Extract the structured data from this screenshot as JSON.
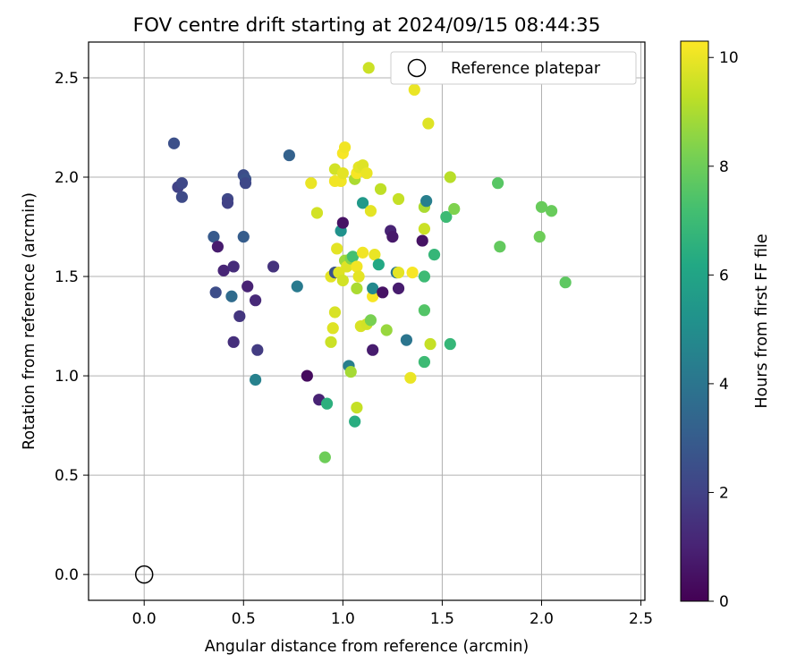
{
  "chart_data": {
    "type": "scatter",
    "title": "FOV centre drift starting at 2024/09/15 08:44:35",
    "xlabel": "Angular distance from reference (arcmin)",
    "ylabel": "Rotation from reference (arcmin)",
    "xlim": [
      -0.28,
      2.52
    ],
    "ylim": [
      -0.13,
      2.68
    ],
    "xticks": [
      0.0,
      0.5,
      1.0,
      1.5,
      2.0,
      2.5
    ],
    "xtick_labels": [
      "0.0",
      "0.5",
      "1.0",
      "1.5",
      "2.0",
      "2.5"
    ],
    "yticks": [
      0.0,
      0.5,
      1.0,
      1.5,
      2.0,
      2.5
    ],
    "ytick_labels": [
      "0.0",
      "0.5",
      "1.0",
      "1.5",
      "2.0",
      "2.5"
    ],
    "grid": true,
    "legend": {
      "position": "top-right",
      "entries": [
        "Reference platepar"
      ]
    },
    "reference_point": {
      "x": 0.0,
      "y": 0.0,
      "label": "Reference platepar"
    },
    "colorbar": {
      "label": "Hours from first FF file",
      "colormap": "viridis",
      "range": [
        0,
        10.3
      ],
      "ticks": [
        0,
        2,
        4,
        6,
        8,
        10
      ],
      "tick_labels": [
        "0",
        "2",
        "4",
        "6",
        "8",
        "10"
      ]
    },
    "points": [
      {
        "x": 0.15,
        "y": 2.17,
        "c": 2.5
      },
      {
        "x": 0.17,
        "y": 1.95,
        "c": 2.0
      },
      {
        "x": 0.19,
        "y": 1.97,
        "c": 2.2
      },
      {
        "x": 0.19,
        "y": 1.9,
        "c": 2.3
      },
      {
        "x": 0.35,
        "y": 1.7,
        "c": 2.9
      },
      {
        "x": 0.36,
        "y": 1.42,
        "c": 2.4
      },
      {
        "x": 0.37,
        "y": 1.65,
        "c": 0.8
      },
      {
        "x": 0.4,
        "y": 1.53,
        "c": 1.1
      },
      {
        "x": 0.42,
        "y": 1.89,
        "c": 2.2
      },
      {
        "x": 0.42,
        "y": 1.87,
        "c": 2.0
      },
      {
        "x": 0.45,
        "y": 1.55,
        "c": 1.3
      },
      {
        "x": 0.44,
        "y": 1.4,
        "c": 3.6
      },
      {
        "x": 0.45,
        "y": 1.17,
        "c": 1.4
      },
      {
        "x": 0.48,
        "y": 1.3,
        "c": 1.6
      },
      {
        "x": 0.5,
        "y": 2.01,
        "c": 2.4
      },
      {
        "x": 0.51,
        "y": 1.99,
        "c": 2.6
      },
      {
        "x": 0.51,
        "y": 1.97,
        "c": 2.2
      },
      {
        "x": 0.5,
        "y": 1.7,
        "c": 3.0
      },
      {
        "x": 0.52,
        "y": 1.45,
        "c": 1.0
      },
      {
        "x": 0.56,
        "y": 1.38,
        "c": 1.2
      },
      {
        "x": 0.57,
        "y": 1.13,
        "c": 1.8
      },
      {
        "x": 0.56,
        "y": 0.98,
        "c": 4.5
      },
      {
        "x": 0.65,
        "y": 1.55,
        "c": 1.5
      },
      {
        "x": 0.73,
        "y": 2.11,
        "c": 3.2
      },
      {
        "x": 0.77,
        "y": 1.45,
        "c": 4.2
      },
      {
        "x": 0.82,
        "y": 1.0,
        "c": 0.3
      },
      {
        "x": 0.84,
        "y": 1.97,
        "c": 10.0
      },
      {
        "x": 0.87,
        "y": 1.82,
        "c": 9.6
      },
      {
        "x": 0.88,
        "y": 0.88,
        "c": 1.0
      },
      {
        "x": 0.92,
        "y": 0.86,
        "c": 6.5
      },
      {
        "x": 0.91,
        "y": 0.59,
        "c": 8.0
      },
      {
        "x": 0.94,
        "y": 1.17,
        "c": 9.5
      },
      {
        "x": 0.95,
        "y": 1.24,
        "c": 9.8
      },
      {
        "x": 0.94,
        "y": 1.5,
        "c": 9.9
      },
      {
        "x": 0.96,
        "y": 1.32,
        "c": 9.7
      },
      {
        "x": 0.96,
        "y": 1.52,
        "c": 2.6
      },
      {
        "x": 0.96,
        "y": 2.04,
        "c": 9.6
      },
      {
        "x": 0.96,
        "y": 1.98,
        "c": 10.1
      },
      {
        "x": 0.97,
        "y": 1.64,
        "c": 9.9
      },
      {
        "x": 0.98,
        "y": 1.52,
        "c": 9.8
      },
      {
        "x": 0.99,
        "y": 1.73,
        "c": 5.2
      },
      {
        "x": 1.0,
        "y": 2.12,
        "c": 10.2
      },
      {
        "x": 0.99,
        "y": 1.98,
        "c": 10.1
      },
      {
        "x": 1.0,
        "y": 2.02,
        "c": 9.9
      },
      {
        "x": 1.0,
        "y": 1.48,
        "c": 9.6
      },
      {
        "x": 1.0,
        "y": 1.77,
        "c": 0.5
      },
      {
        "x": 1.01,
        "y": 2.15,
        "c": 10.1
      },
      {
        "x": 1.01,
        "y": 1.58,
        "c": 8.8
      },
      {
        "x": 1.02,
        "y": 1.55,
        "c": 9.8
      },
      {
        "x": 1.03,
        "y": 1.05,
        "c": 4.4
      },
      {
        "x": 1.04,
        "y": 1.02,
        "c": 8.9
      },
      {
        "x": 1.04,
        "y": 1.59,
        "c": 8.4
      },
      {
        "x": 1.05,
        "y": 1.6,
        "c": 7.2
      },
      {
        "x": 1.06,
        "y": 1.99,
        "c": 9.0
      },
      {
        "x": 1.06,
        "y": 0.77,
        "c": 6.4
      },
      {
        "x": 1.07,
        "y": 2.02,
        "c": 10.2
      },
      {
        "x": 1.07,
        "y": 1.55,
        "c": 10.1
      },
      {
        "x": 1.08,
        "y": 1.5,
        "c": 9.9
      },
      {
        "x": 1.07,
        "y": 1.44,
        "c": 9.0
      },
      {
        "x": 1.07,
        "y": 0.84,
        "c": 9.4
      },
      {
        "x": 1.08,
        "y": 2.05,
        "c": 9.9
      },
      {
        "x": 1.09,
        "y": 1.25,
        "c": 9.7
      },
      {
        "x": 1.1,
        "y": 1.62,
        "c": 10.1
      },
      {
        "x": 1.1,
        "y": 2.06,
        "c": 9.8
      },
      {
        "x": 1.1,
        "y": 1.87,
        "c": 5.5
      },
      {
        "x": 1.12,
        "y": 2.02,
        "c": 10.0
      },
      {
        "x": 1.12,
        "y": 1.26,
        "c": 9.6
      },
      {
        "x": 1.13,
        "y": 2.55,
        "c": 9.5
      },
      {
        "x": 1.14,
        "y": 1.83,
        "c": 9.9
      },
      {
        "x": 1.14,
        "y": 1.28,
        "c": 8.2
      },
      {
        "x": 1.15,
        "y": 1.4,
        "c": 10.2
      },
      {
        "x": 1.15,
        "y": 1.44,
        "c": 4.8
      },
      {
        "x": 1.15,
        "y": 1.13,
        "c": 0.8
      },
      {
        "x": 1.16,
        "y": 1.61,
        "c": 10.0
      },
      {
        "x": 1.18,
        "y": 1.56,
        "c": 6.2
      },
      {
        "x": 1.19,
        "y": 1.94,
        "c": 9.3
      },
      {
        "x": 1.2,
        "y": 1.42,
        "c": 0.5
      },
      {
        "x": 1.22,
        "y": 1.23,
        "c": 8.7
      },
      {
        "x": 1.24,
        "y": 1.73,
        "c": 1.0
      },
      {
        "x": 1.25,
        "y": 1.7,
        "c": 0.7
      },
      {
        "x": 1.27,
        "y": 1.52,
        "c": 4.0
      },
      {
        "x": 1.28,
        "y": 1.89,
        "c": 9.4
      },
      {
        "x": 1.28,
        "y": 1.44,
        "c": 0.8
      },
      {
        "x": 1.28,
        "y": 1.52,
        "c": 9.9
      },
      {
        "x": 1.32,
        "y": 1.18,
        "c": 4.0
      },
      {
        "x": 1.34,
        "y": 0.99,
        "c": 10.0
      },
      {
        "x": 1.35,
        "y": 1.52,
        "c": 10.2
      },
      {
        "x": 1.36,
        "y": 2.44,
        "c": 10.0
      },
      {
        "x": 1.4,
        "y": 1.68,
        "c": 0.5
      },
      {
        "x": 1.41,
        "y": 1.74,
        "c": 9.5
      },
      {
        "x": 1.41,
        "y": 1.5,
        "c": 7.0
      },
      {
        "x": 1.41,
        "y": 1.85,
        "c": 9.0
      },
      {
        "x": 1.42,
        "y": 1.88,
        "c": 4.4
      },
      {
        "x": 1.41,
        "y": 1.33,
        "c": 7.5
      },
      {
        "x": 1.41,
        "y": 1.07,
        "c": 7.0
      },
      {
        "x": 1.43,
        "y": 2.27,
        "c": 9.8
      },
      {
        "x": 1.44,
        "y": 1.16,
        "c": 9.4
      },
      {
        "x": 1.46,
        "y": 1.61,
        "c": 6.8
      },
      {
        "x": 1.52,
        "y": 1.8,
        "c": 7.0
      },
      {
        "x": 1.54,
        "y": 2.0,
        "c": 9.2
      },
      {
        "x": 1.54,
        "y": 1.16,
        "c": 6.8
      },
      {
        "x": 1.56,
        "y": 1.84,
        "c": 8.3
      },
      {
        "x": 1.78,
        "y": 1.97,
        "c": 7.6
      },
      {
        "x": 1.79,
        "y": 1.65,
        "c": 7.8
      },
      {
        "x": 1.99,
        "y": 1.7,
        "c": 8.0
      },
      {
        "x": 2.0,
        "y": 1.85,
        "c": 7.9
      },
      {
        "x": 2.05,
        "y": 1.83,
        "c": 7.9
      },
      {
        "x": 2.12,
        "y": 1.47,
        "c": 7.7
      }
    ]
  }
}
